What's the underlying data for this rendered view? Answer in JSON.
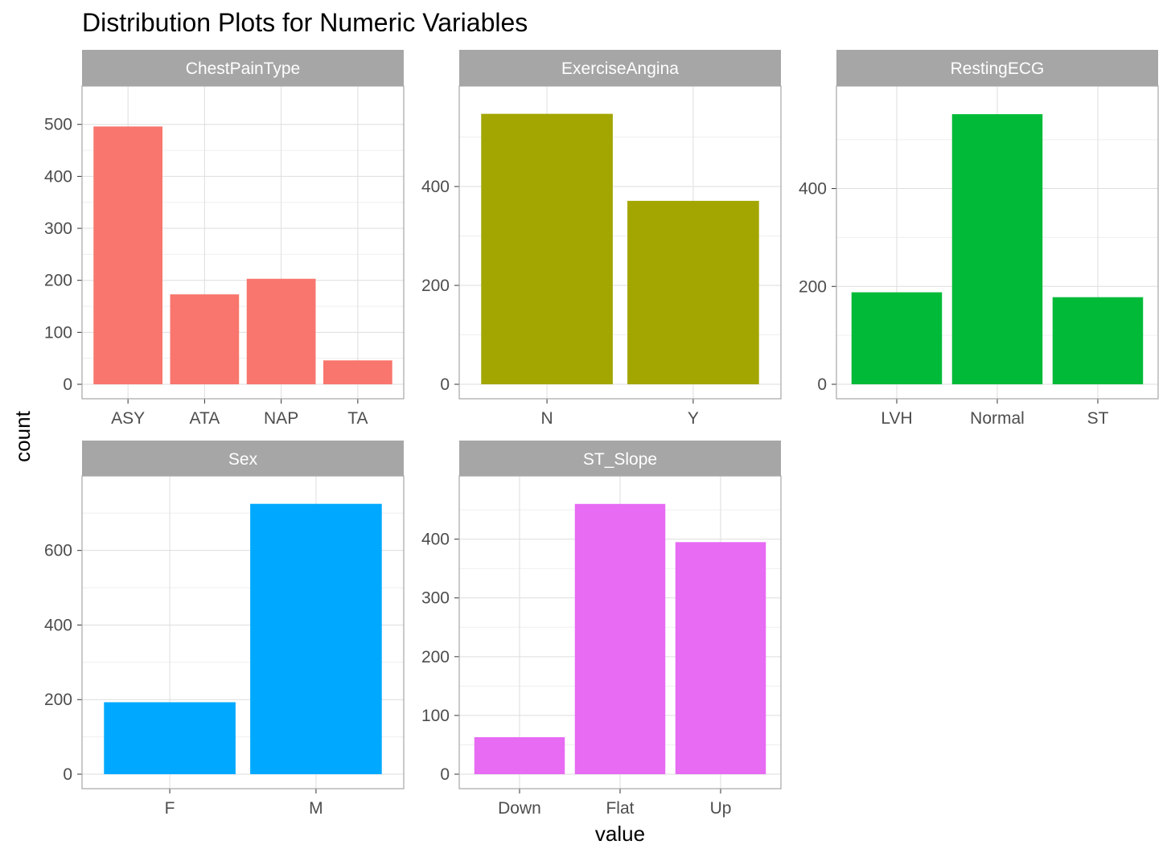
{
  "title": "Distribution Plots for Numeric Variables",
  "xlabel": "value",
  "ylabel": "count",
  "colors": {
    "strip_bg": "#a6a6a6",
    "panel_border": "#a6a6a6",
    "grid_major": "#dedede",
    "grid_minor": "#efefef"
  },
  "chart_data": [
    {
      "type": "bar",
      "facet": "ChestPainType",
      "categories": [
        "ASY",
        "ATA",
        "NAP",
        "TA"
      ],
      "values": [
        496,
        173,
        203,
        46
      ],
      "yticks": [
        0,
        100,
        200,
        300,
        400,
        500
      ],
      "ylim": [
        0,
        546
      ],
      "color": "#F8766D"
    },
    {
      "type": "bar",
      "facet": "ExerciseAngina",
      "categories": [
        "N",
        "Y"
      ],
      "values": [
        547,
        371
      ],
      "yticks": [
        0,
        200,
        400
      ],
      "ylim": [
        0,
        574
      ],
      "color": "#A3A500"
    },
    {
      "type": "bar",
      "facet": "RestingECG",
      "categories": [
        "LVH",
        "Normal",
        "ST"
      ],
      "values": [
        188,
        552,
        178
      ],
      "yticks": [
        0,
        200,
        400
      ],
      "ylim": [
        0,
        580
      ],
      "color": "#00BA38"
    },
    {
      "type": "bar",
      "facet": "Sex",
      "categories": [
        "F",
        "M"
      ],
      "values": [
        193,
        725
      ],
      "yticks": [
        0,
        200,
        400,
        600
      ],
      "ylim": [
        0,
        761
      ],
      "color": "#00A9FF"
    },
    {
      "type": "bar",
      "facet": "ST_Slope",
      "categories": [
        "Down",
        "Flat",
        "Up"
      ],
      "values": [
        63,
        460,
        395
      ],
      "yticks": [
        0,
        100,
        200,
        300,
        400
      ],
      "ylim": [
        0,
        483
      ],
      "color": "#E76BF3"
    }
  ]
}
